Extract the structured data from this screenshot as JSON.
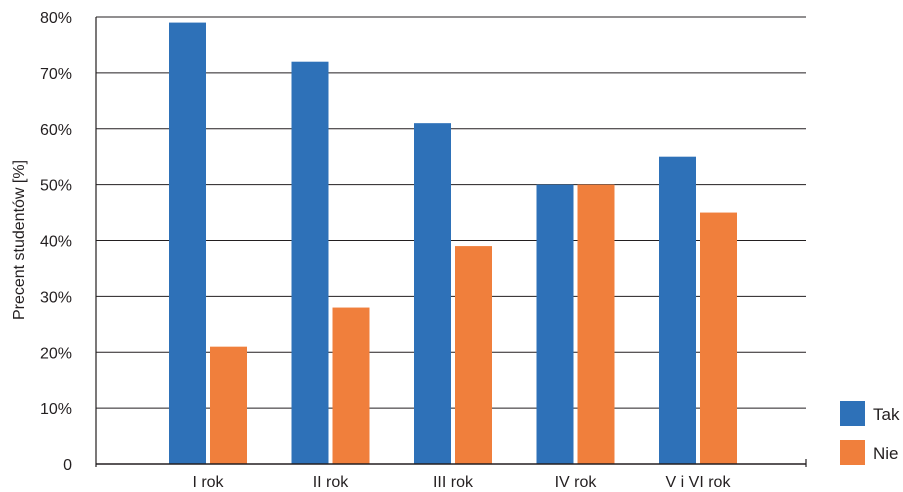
{
  "chart_data": {
    "type": "bar",
    "categories": [
      "I rok",
      "II rok",
      "III rok",
      "IV rok",
      "V i VI rok"
    ],
    "series": [
      {
        "name": "Tak",
        "color": "#2e71b8",
        "values": [
          79,
          72,
          61,
          50,
          55
        ]
      },
      {
        "name": "Nie",
        "color": "#f07f3c",
        "values": [
          21,
          28,
          39,
          50,
          45
        ]
      }
    ],
    "ylabel": "Precent studentów [%]",
    "xlabel": "",
    "ylim": [
      0,
      80
    ],
    "yticks": [
      "0",
      "10%",
      "20%",
      "30%",
      "40%",
      "50%",
      "60%",
      "70%",
      "80%"
    ],
    "grid": true,
    "legend_position": "bottom-right"
  }
}
